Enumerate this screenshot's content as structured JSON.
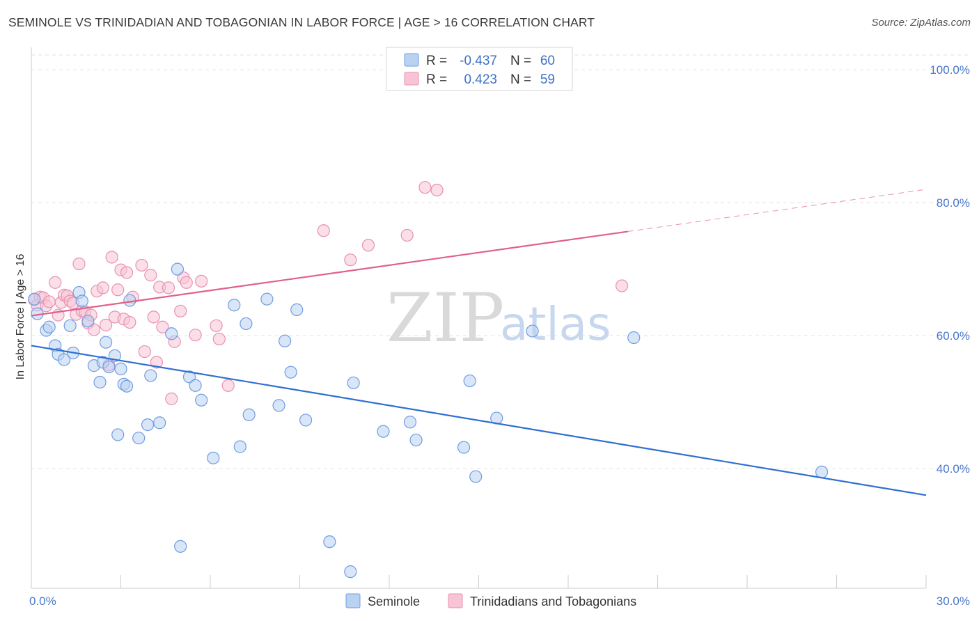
{
  "title": "SEMINOLE VS TRINIDADIAN AND TOBAGONIAN IN LABOR FORCE | AGE > 16 CORRELATION CHART",
  "source": "Source: ZipAtlas.com",
  "watermark": {
    "zip": "ZIP",
    "atlas": "atlas"
  },
  "colors": {
    "seminole_fill": "#b9d2f2",
    "seminole_stroke": "#6f9de0",
    "seminole_line": "#2f6fd0",
    "trini_fill": "#f7c4d6",
    "trini_stroke": "#e890b0",
    "trini_line": "#e0608a"
  },
  "legend": {
    "r_label": "R =",
    "n_label": "N =",
    "seminole": {
      "r": "-0.437",
      "n": "60"
    },
    "trini": {
      "r": "0.423",
      "n": "59"
    }
  },
  "chart_data": {
    "type": "scatter",
    "title": "SEMINOLE VS TRINIDADIAN AND TOBAGONIAN IN LABOR FORCE | AGE > 16 CORRELATION CHART",
    "xlabel": "",
    "ylabel": "In Labor Force | Age > 16",
    "xlim": [
      0,
      30
    ],
    "ylim": [
      22,
      104
    ],
    "x_tick_labels": [
      "0.0%",
      "30.0%"
    ],
    "y_ticks": [
      40,
      60,
      80,
      100
    ],
    "y_tick_labels": [
      "40.0%",
      "60.0%",
      "80.0%",
      "100.0%"
    ],
    "grid": true,
    "legend_position": "top-center",
    "series": [
      {
        "name": "Seminole",
        "points": [
          [
            0.1,
            65.5
          ],
          [
            0.2,
            63.3
          ],
          [
            0.5,
            60.8
          ],
          [
            0.6,
            61.3
          ],
          [
            0.8,
            58.5
          ],
          [
            0.9,
            57.2
          ],
          [
            1.1,
            56.4
          ],
          [
            1.3,
            61.5
          ],
          [
            1.4,
            57.4
          ],
          [
            1.6,
            66.5
          ],
          [
            1.7,
            65.2
          ],
          [
            1.9,
            62.2
          ],
          [
            2.1,
            55.5
          ],
          [
            2.3,
            53.0
          ],
          [
            2.4,
            56.0
          ],
          [
            2.5,
            59.0
          ],
          [
            2.6,
            55.3
          ],
          [
            2.8,
            57.0
          ],
          [
            2.9,
            45.1
          ],
          [
            3.0,
            55.0
          ],
          [
            3.1,
            52.7
          ],
          [
            3.2,
            52.4
          ],
          [
            3.3,
            65.3
          ],
          [
            3.6,
            44.6
          ],
          [
            3.9,
            46.6
          ],
          [
            4.0,
            54.0
          ],
          [
            4.3,
            46.9
          ],
          [
            4.7,
            60.3
          ],
          [
            4.9,
            70.0
          ],
          [
            5.0,
            28.3
          ],
          [
            5.3,
            53.8
          ],
          [
            5.5,
            52.5
          ],
          [
            5.7,
            50.3
          ],
          [
            6.1,
            41.6
          ],
          [
            6.8,
            64.6
          ],
          [
            7.0,
            43.3
          ],
          [
            7.2,
            61.8
          ],
          [
            7.3,
            48.1
          ],
          [
            7.9,
            65.5
          ],
          [
            8.3,
            49.5
          ],
          [
            8.5,
            59.2
          ],
          [
            8.7,
            54.5
          ],
          [
            8.9,
            63.9
          ],
          [
            9.2,
            47.3
          ],
          [
            10.0,
            29.0
          ],
          [
            10.7,
            24.5
          ],
          [
            10.8,
            52.9
          ],
          [
            11.8,
            45.6
          ],
          [
            12.7,
            47.0
          ],
          [
            12.9,
            44.3
          ],
          [
            14.5,
            43.2
          ],
          [
            14.7,
            53.2
          ],
          [
            14.9,
            38.8
          ],
          [
            15.6,
            47.6
          ],
          [
            16.8,
            60.7
          ],
          [
            20.2,
            59.7
          ],
          [
            26.5,
            39.5
          ]
        ]
      },
      {
        "name": "Trinidadians and Tobagonians",
        "points": [
          [
            0.1,
            65.4
          ],
          [
            0.2,
            64.6
          ],
          [
            0.3,
            65.8
          ],
          [
            0.4,
            65.7
          ],
          [
            0.5,
            64.5
          ],
          [
            0.6,
            65.1
          ],
          [
            0.8,
            68.0
          ],
          [
            0.9,
            63.1
          ],
          [
            1.0,
            65.0
          ],
          [
            1.1,
            66.1
          ],
          [
            1.2,
            66.0
          ],
          [
            1.3,
            65.2
          ],
          [
            1.4,
            64.9
          ],
          [
            1.5,
            63.2
          ],
          [
            1.6,
            70.8
          ],
          [
            1.7,
            63.7
          ],
          [
            1.8,
            63.6
          ],
          [
            1.9,
            61.9
          ],
          [
            2.0,
            63.1
          ],
          [
            2.1,
            60.9
          ],
          [
            2.2,
            66.7
          ],
          [
            2.4,
            67.2
          ],
          [
            2.5,
            61.6
          ],
          [
            2.6,
            55.6
          ],
          [
            2.7,
            71.8
          ],
          [
            2.8,
            62.8
          ],
          [
            2.9,
            66.9
          ],
          [
            3.0,
            69.9
          ],
          [
            3.1,
            62.5
          ],
          [
            3.2,
            69.5
          ],
          [
            3.3,
            62.0
          ],
          [
            3.4,
            65.8
          ],
          [
            3.7,
            70.6
          ],
          [
            3.8,
            57.6
          ],
          [
            4.0,
            69.1
          ],
          [
            4.1,
            62.8
          ],
          [
            4.2,
            56.0
          ],
          [
            4.3,
            67.3
          ],
          [
            4.4,
            61.3
          ],
          [
            4.6,
            67.2
          ],
          [
            4.7,
            50.5
          ],
          [
            4.8,
            59.1
          ],
          [
            5.0,
            63.7
          ],
          [
            5.1,
            68.7
          ],
          [
            5.2,
            68.0
          ],
          [
            5.5,
            60.1
          ],
          [
            5.7,
            68.2
          ],
          [
            6.2,
            61.5
          ],
          [
            6.3,
            59.5
          ],
          [
            6.6,
            52.5
          ],
          [
            9.8,
            75.8
          ],
          [
            10.7,
            71.4
          ],
          [
            11.3,
            73.6
          ],
          [
            12.6,
            75.1
          ],
          [
            13.2,
            82.3
          ],
          [
            13.6,
            81.9
          ],
          [
            19.8,
            67.5
          ]
        ]
      }
    ],
    "trend_lines": [
      {
        "series": "Seminole",
        "x": [
          0,
          30
        ],
        "y": [
          58.5,
          36.0
        ]
      },
      {
        "series": "Trinidadians and Tobagonians",
        "x": [
          0,
          30
        ],
        "y": [
          63.0,
          82.0
        ],
        "solid_until_x": 20
      }
    ]
  }
}
